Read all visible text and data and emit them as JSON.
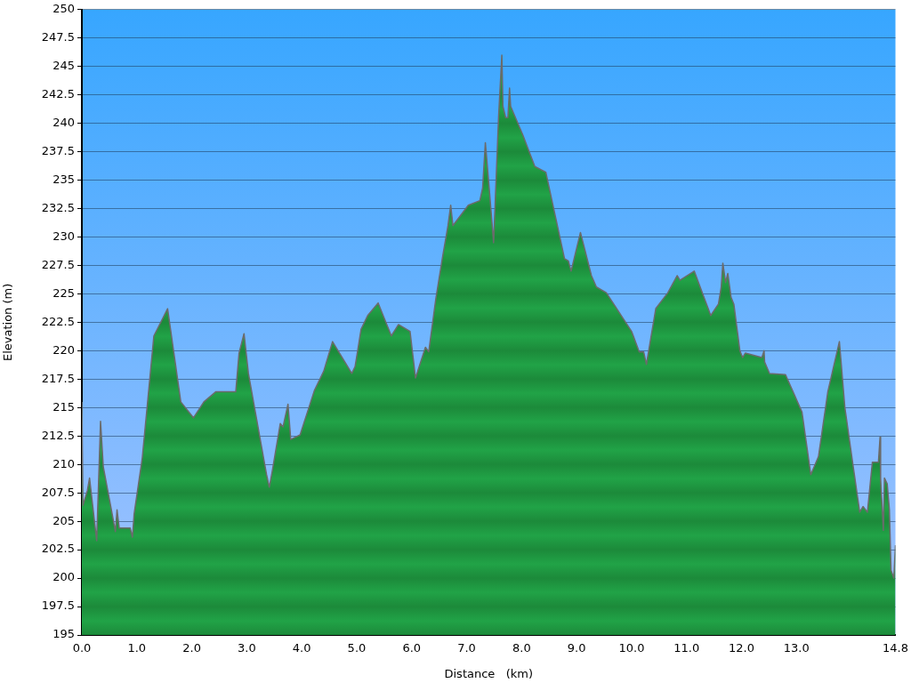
{
  "chart_data": {
    "type": "area",
    "xlabel": "Distance   (km)",
    "ylabel": "Elevation (m)",
    "xlim": [
      0,
      14.8
    ],
    "ylim": [
      195,
      250
    ],
    "xticks": [
      {
        "value": 0,
        "label": "0.0"
      },
      {
        "value": 1,
        "label": "1.0"
      },
      {
        "value": 2,
        "label": "2.0"
      },
      {
        "value": 3,
        "label": "3.0"
      },
      {
        "value": 4,
        "label": "4.0"
      },
      {
        "value": 5,
        "label": "5.0"
      },
      {
        "value": 6,
        "label": "6.0"
      },
      {
        "value": 7,
        "label": "7.0"
      },
      {
        "value": 8,
        "label": "8.0"
      },
      {
        "value": 9,
        "label": "9.0"
      },
      {
        "value": 10,
        "label": "10.0"
      },
      {
        "value": 11,
        "label": "11.0"
      },
      {
        "value": 12,
        "label": "12.0"
      },
      {
        "value": 13,
        "label": "13.0"
      },
      {
        "value": 14.8,
        "label": "14.8"
      }
    ],
    "yticks": [
      195,
      197.5,
      200,
      202.5,
      205,
      207.5,
      210,
      212.5,
      215,
      217.5,
      220,
      222.5,
      225,
      227.5,
      230,
      232.5,
      235,
      237.5,
      240,
      242.5,
      245,
      247.5,
      250
    ],
    "grid": "y",
    "legend": false,
    "marker": "none",
    "line_style": "solid",
    "series": [
      {
        "color": "#21a347",
        "x": [
          0,
          0.02,
          0.1,
          0.14,
          0.27,
          0.34,
          0.39,
          0.53,
          0.61,
          0.64,
          0.68,
          0.88,
          0.92,
          0.95,
          1.1,
          1.31,
          1.56,
          1.8,
          2.03,
          2.22,
          2.44,
          2.8,
          2.86,
          2.95,
          3.03,
          3.36,
          3.41,
          3.46,
          3.61,
          3.66,
          3.75,
          3.8,
          3.97,
          4.23,
          4.4,
          4.56,
          4.91,
          4.97,
          5.08,
          5.2,
          5.39,
          5.63,
          5.76,
          5.97,
          6.07,
          6.25,
          6.31,
          6.44,
          6.56,
          6.66,
          6.71,
          6.75,
          7.03,
          7.24,
          7.29,
          7.34,
          7.41,
          7.49,
          7.58,
          7.64,
          7.66,
          7.71,
          7.75,
          7.78,
          7.8,
          8.02,
          8.24,
          8.44,
          8.78,
          8.85,
          8.9,
          9.07,
          9.27,
          9.36,
          9.54,
          10.0,
          10.14,
          10.22,
          10.27,
          10.44,
          10.66,
          10.83,
          10.88,
          11.14,
          11.44,
          11.58,
          11.63,
          11.66,
          11.71,
          11.75,
          11.81,
          11.86,
          11.97,
          12.02,
          12.07,
          12.37,
          12.41,
          12.42,
          12.51,
          12.8,
          13.1,
          13.26,
          13.4,
          13.57,
          13.78,
          13.88,
          13.97,
          14.15,
          14.21,
          14.29,
          14.38,
          14.49,
          14.52,
          14.53,
          14.58,
          14.6,
          14.65,
          14.69,
          14.72,
          14.77,
          14.8
        ],
        "values": [
          215.5,
          206.4,
          207.7,
          208.8,
          203.3,
          213.8,
          209.8,
          206.2,
          204.1,
          206.0,
          204.4,
          204.4,
          203.6,
          205.6,
          210.6,
          221.3,
          223.7,
          215.5,
          214.1,
          215.5,
          216.4,
          216.4,
          219.8,
          221.5,
          218.0,
          209.1,
          208.0,
          209.3,
          213.6,
          213.3,
          215.3,
          212.2,
          212.6,
          216.5,
          218.2,
          220.8,
          218.0,
          218.6,
          221.9,
          223.1,
          224.2,
          221.3,
          222.3,
          221.7,
          217.6,
          220.3,
          219.9,
          224.6,
          228.2,
          231.0,
          232.8,
          231.0,
          232.8,
          233.2,
          234.3,
          238.3,
          234.3,
          229.5,
          240.5,
          246.0,
          241.5,
          240.5,
          240.5,
          243.1,
          241.5,
          239.0,
          236.2,
          235.7,
          228.1,
          227.9,
          227.0,
          230.4,
          226.6,
          225.6,
          225.1,
          221.7,
          219.9,
          219.9,
          218.8,
          223.7,
          225.1,
          226.6,
          226.2,
          227.0,
          223.1,
          224.1,
          225.6,
          227.7,
          226.0,
          226.8,
          224.7,
          224.1,
          220.0,
          219.4,
          219.8,
          219.4,
          220.0,
          219.0,
          218.0,
          217.9,
          214.6,
          209.1,
          210.7,
          216.4,
          220.8,
          215.0,
          211.9,
          205.8,
          206.3,
          205.8,
          210.2,
          210.2,
          212.4,
          208.7,
          204.2,
          208.8,
          208.3,
          206.0,
          200.7,
          200.0,
          202.9
        ]
      }
    ]
  }
}
